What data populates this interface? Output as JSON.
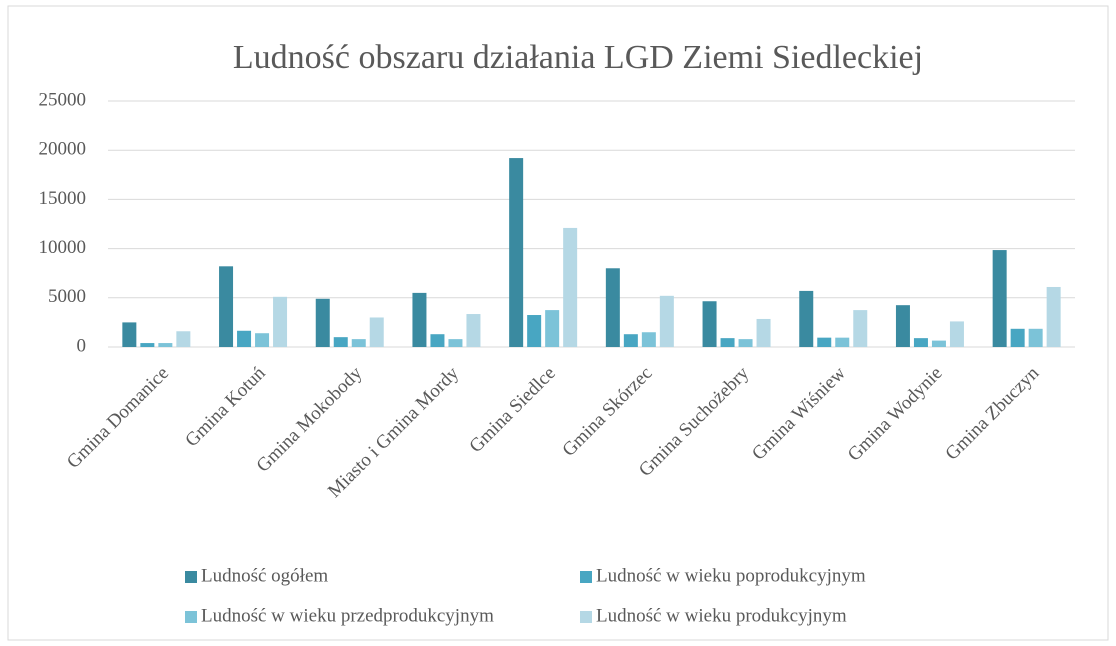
{
  "chart_data": {
    "type": "bar",
    "title": "Ludność obszaru działania LGD Ziemi Siedleckiej",
    "categories": [
      "Gmina Domanice",
      "Gmina Kotuń",
      "Gmina Mokobody",
      "Miasto i Gmina Mordy",
      "Gmina Siedlce",
      "Gmina Skórzec",
      "Gmina Suchożebry",
      "Gmina Wiśniew",
      "Gmina Wodynie",
      "Gmina Zbuczyn"
    ],
    "series": [
      {
        "name": "Ludność ogółem",
        "color": "#3a8aa0",
        "values": [
          2500,
          8200,
          4900,
          5500,
          19200,
          8000,
          4650,
          5700,
          4250,
          9850
        ]
      },
      {
        "name": "Ludność w wieku poprodukcyjnym",
        "color": "#48a6c2",
        "values": [
          400,
          1650,
          1000,
          1300,
          3250,
          1300,
          900,
          950,
          900,
          1850
        ]
      },
      {
        "name": "Ludność w wieku przedprodukcyjnym",
        "color": "#7cc3d8",
        "values": [
          400,
          1400,
          800,
          800,
          3750,
          1500,
          800,
          950,
          650,
          1850
        ]
      },
      {
        "name": "Ludność w wieku produkcyjnym",
        "color": "#b5d8e5",
        "values": [
          1600,
          5100,
          3000,
          3350,
          12100,
          5200,
          2850,
          3750,
          2600,
          6100
        ]
      }
    ],
    "ylim": [
      0,
      25000
    ],
    "yticks": [
      0,
      5000,
      10000,
      15000,
      20000,
      25000
    ],
    "grid": true
  }
}
